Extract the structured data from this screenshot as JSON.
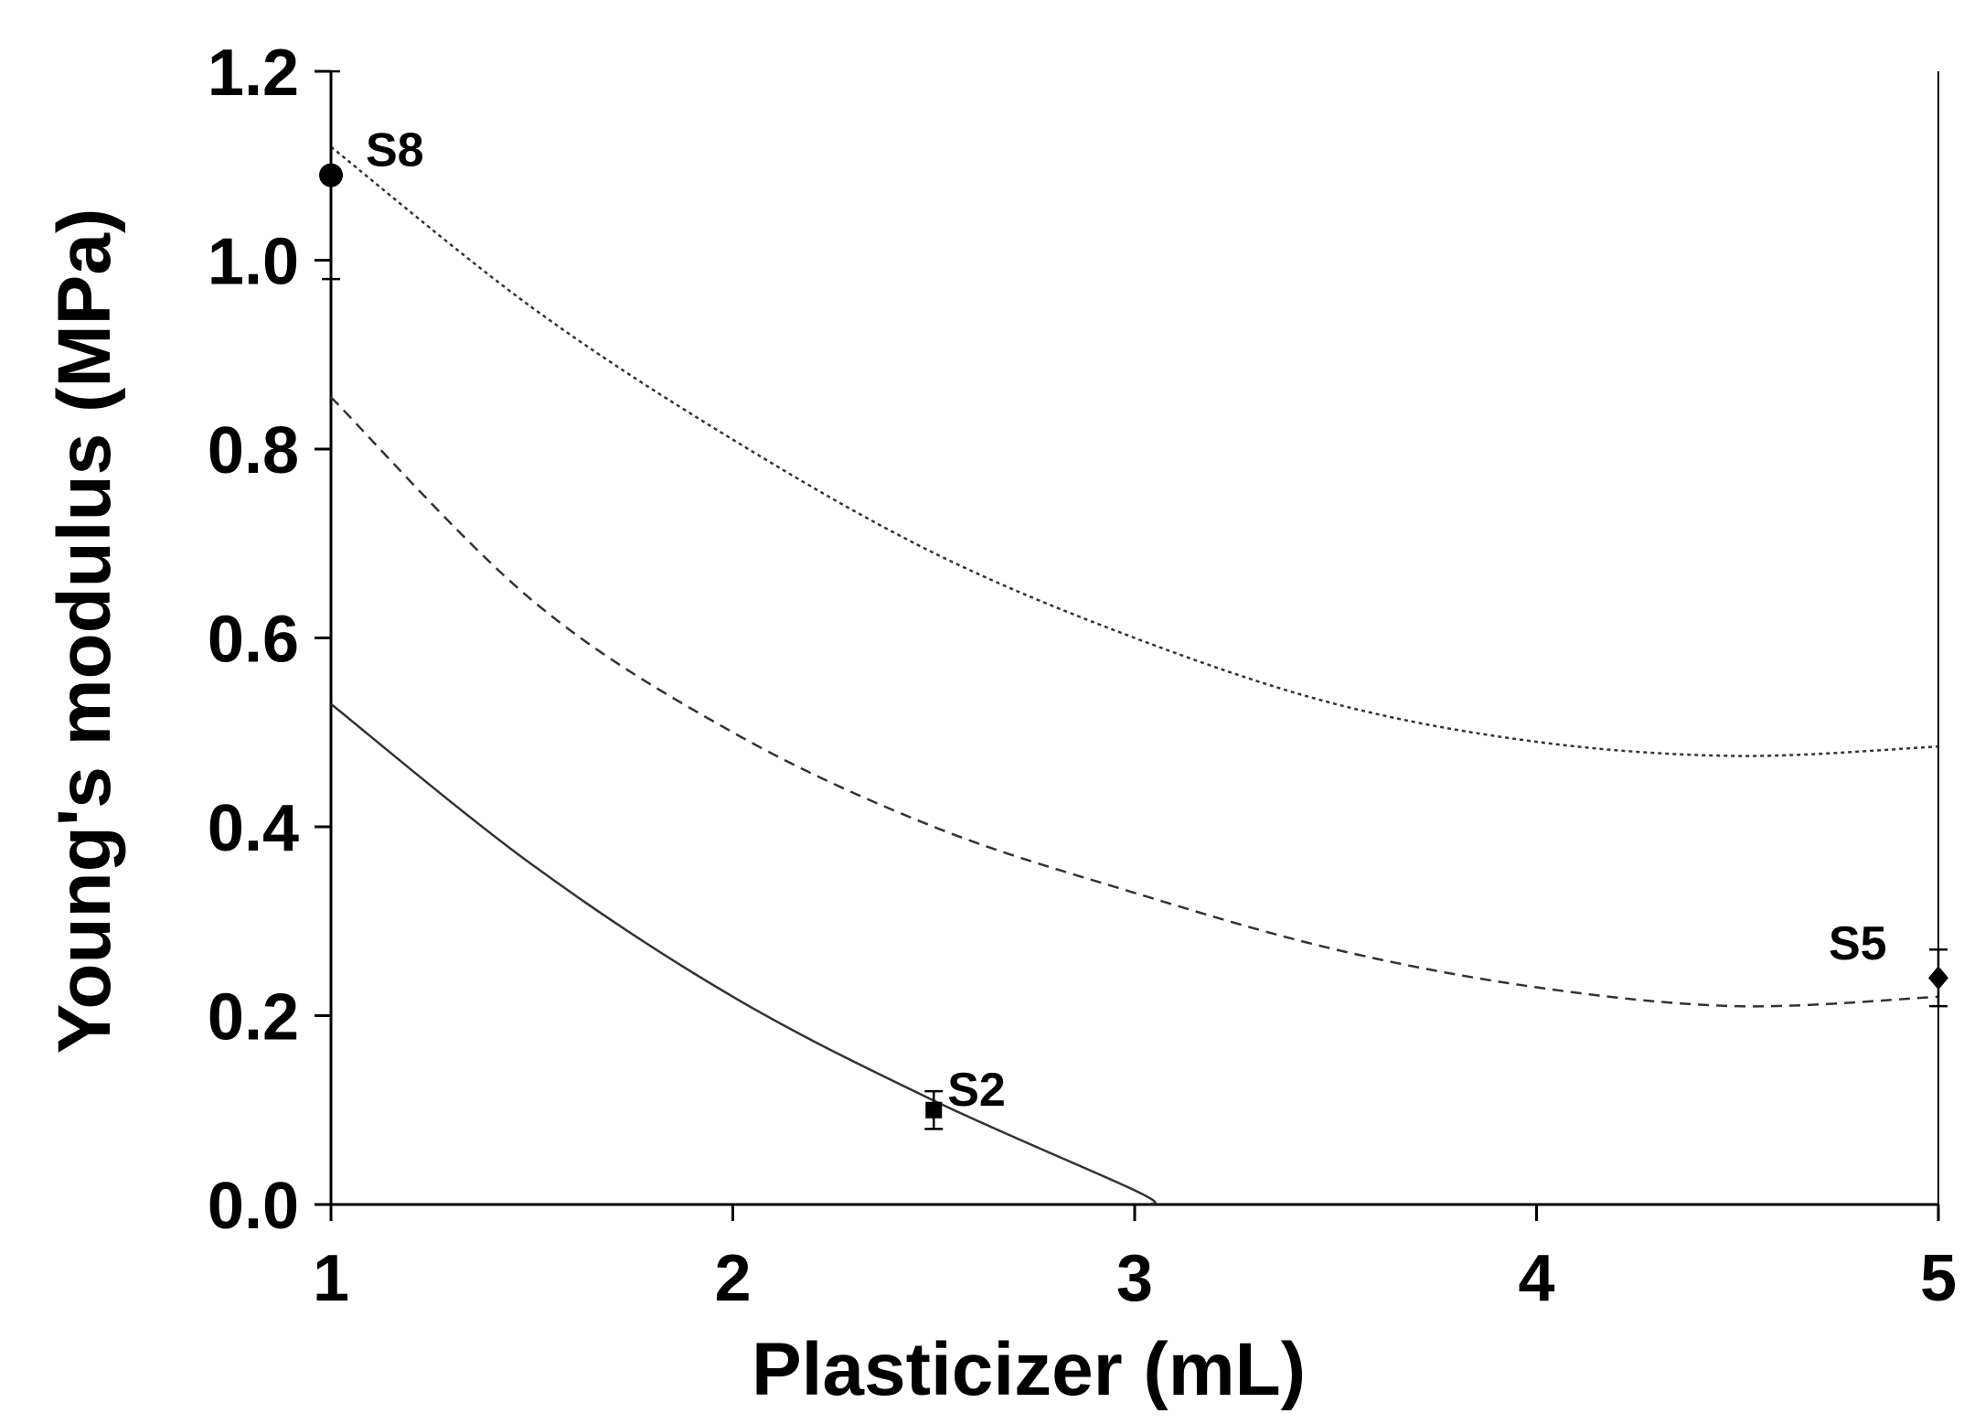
{
  "chart_data": {
    "type": "line",
    "xlabel": "Plasticizer (mL)",
    "ylabel": "Young's modulus (MPa)",
    "xlim": [
      1,
      5
    ],
    "ylim": [
      0,
      1.2
    ],
    "xticks": [
      "1",
      "2",
      "3",
      "4",
      "5"
    ],
    "yticks": [
      "0.0",
      "0.2",
      "0.4",
      "0.6",
      "0.8",
      "1.0",
      "1.2"
    ],
    "xtick_values": [
      1,
      2,
      3,
      4,
      5
    ],
    "ytick_values": [
      0,
      0.2,
      0.4,
      0.6,
      0.8,
      1.0,
      1.2
    ],
    "grid": false,
    "curves": [
      {
        "style": "dotted",
        "x": [
          1,
          1.5,
          2,
          2.5,
          3,
          3.5,
          4,
          4.5,
          5
        ],
        "y": [
          1.12,
          0.95,
          0.81,
          0.69,
          0.6,
          0.53,
          0.49,
          0.475,
          0.485
        ]
      },
      {
        "style": "dashed",
        "x": [
          1,
          1.5,
          2,
          2.5,
          3,
          3.5,
          4,
          4.5,
          5
        ],
        "y": [
          0.855,
          0.64,
          0.5,
          0.4,
          0.33,
          0.27,
          0.23,
          0.21,
          0.22
        ]
      },
      {
        "style": "solid",
        "x": [
          1,
          1.5,
          2,
          2.5,
          3,
          3.04
        ],
        "y": [
          0.53,
          0.36,
          0.22,
          0.11,
          0.015,
          0.0
        ]
      }
    ],
    "points": [
      {
        "label": "S8",
        "x": 1.0,
        "y": 1.09,
        "err": 0.11,
        "marker": "circle"
      },
      {
        "label": "S2",
        "x": 2.5,
        "y": 0.1,
        "err": 0.02,
        "marker": "square"
      },
      {
        "label": "S5",
        "x": 5.0,
        "y": 0.24,
        "err": 0.03,
        "marker": "diamond"
      }
    ]
  }
}
